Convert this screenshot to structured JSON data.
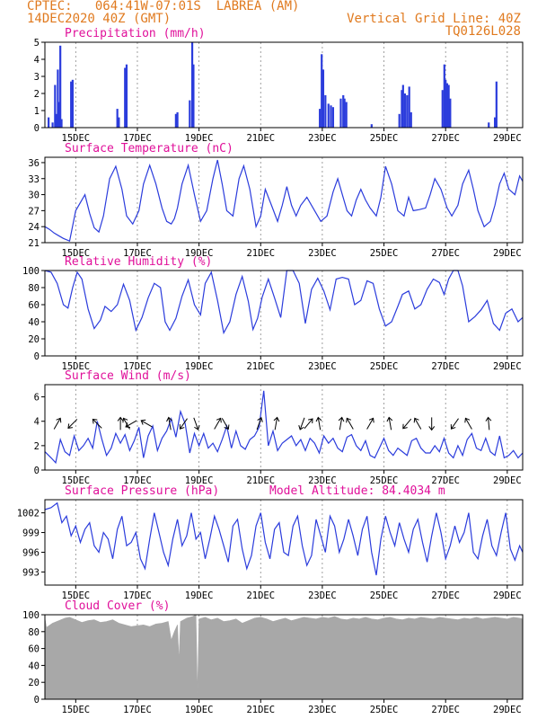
{
  "header": {
    "line1": "CPTEC:   064:41W-07:01S  LABREA (AM)",
    "line2": "14DEC2020 40Z (GMT)",
    "right1": "Vertical Grid Line: 40Z",
    "right2": "TQ0126L028"
  },
  "colors": {
    "header": "#e07a1f",
    "title": "#e0109a",
    "line": "#2b3cdc",
    "cloud": "#a8a8a8",
    "grid": "#888888"
  },
  "x_axis": {
    "start": 0,
    "end": 15.5,
    "ticks": [
      {
        "x": 1,
        "label": "15DEC"
      },
      {
        "x": 3,
        "label": "17DEC"
      },
      {
        "x": 5,
        "label": "19DEC"
      },
      {
        "x": 7,
        "label": "21DEC"
      },
      {
        "x": 9,
        "label": "23DEC"
      },
      {
        "x": 11,
        "label": "25DEC"
      },
      {
        "x": 13,
        "label": "27DEC"
      },
      {
        "x": 15,
        "label": "29DEC"
      }
    ]
  },
  "chart_data": [
    {
      "type": "bar",
      "title": "Precipitation (mm/h)",
      "ylim": [
        0,
        5
      ],
      "yticks": [
        0,
        1,
        2,
        3,
        4,
        5
      ],
      "bars": [
        [
          0.12,
          0.6
        ],
        [
          0.25,
          0.3
        ],
        [
          0.33,
          2.5
        ],
        [
          0.37,
          0.8
        ],
        [
          0.42,
          3.4
        ],
        [
          0.46,
          1.5
        ],
        [
          0.5,
          4.8
        ],
        [
          0.54,
          0.5
        ],
        [
          0.85,
          2.7
        ],
        [
          0.9,
          2.8
        ],
        [
          2.35,
          1.1
        ],
        [
          2.4,
          0.6
        ],
        [
          2.6,
          3.5
        ],
        [
          2.65,
          3.7
        ],
        [
          4.25,
          0.8
        ],
        [
          4.3,
          0.9
        ],
        [
          4.7,
          1.6
        ],
        [
          4.78,
          5.0
        ],
        [
          4.82,
          3.7
        ],
        [
          8.92,
          1.1
        ],
        [
          8.98,
          4.3
        ],
        [
          9.03,
          3.4
        ],
        [
          9.1,
          1.9
        ],
        [
          9.2,
          1.4
        ],
        [
          9.28,
          1.3
        ],
        [
          9.35,
          1.2
        ],
        [
          9.6,
          1.7
        ],
        [
          9.68,
          1.9
        ],
        [
          9.72,
          1.7
        ],
        [
          9.78,
          1.5
        ],
        [
          10.6,
          0.2
        ],
        [
          11.5,
          0.8
        ],
        [
          11.58,
          2.2
        ],
        [
          11.62,
          2.5
        ],
        [
          11.68,
          2.0
        ],
        [
          11.75,
          1.9
        ],
        [
          11.82,
          2.4
        ],
        [
          11.88,
          0.9
        ],
        [
          12.9,
          2.2
        ],
        [
          12.96,
          3.7
        ],
        [
          13.0,
          2.8
        ],
        [
          13.05,
          2.6
        ],
        [
          13.1,
          2.5
        ],
        [
          13.15,
          1.7
        ],
        [
          14.4,
          0.3
        ],
        [
          14.6,
          0.6
        ],
        [
          14.65,
          2.7
        ]
      ]
    },
    {
      "type": "line",
      "title": "Surface Temperature (nC)",
      "ylim": [
        21,
        37
      ],
      "yticks": [
        21,
        24,
        27,
        30,
        33,
        36
      ],
      "x": [
        0,
        0.15,
        0.3,
        0.45,
        0.6,
        0.8,
        1.0,
        1.3,
        1.45,
        1.6,
        1.75,
        1.9,
        2.1,
        2.3,
        2.5,
        2.65,
        2.85,
        3.05,
        3.2,
        3.4,
        3.6,
        3.8,
        3.95,
        4.1,
        4.2,
        4.3,
        4.45,
        4.65,
        4.85,
        5.05,
        5.25,
        5.45,
        5.6,
        5.75,
        5.9,
        6.1,
        6.3,
        6.45,
        6.65,
        6.85,
        7.0,
        7.15,
        7.35,
        7.55,
        7.7,
        7.85,
        8.0,
        8.15,
        8.3,
        8.5,
        8.7,
        8.95,
        9.15,
        9.35,
        9.5,
        9.65,
        9.8,
        9.95,
        10.1,
        10.25,
        10.4,
        10.55,
        10.75,
        10.9,
        11.05,
        11.25,
        11.45,
        11.65,
        11.8,
        11.95,
        12.15,
        12.35,
        12.5,
        12.65,
        12.85,
        13.05,
        13.2,
        13.4,
        13.55,
        13.75,
        13.9,
        14.05,
        14.25,
        14.45,
        14.6,
        14.75,
        14.9,
        15.05,
        15.25,
        15.4,
        15.5
      ],
      "y": [
        24,
        23.5,
        22.8,
        22.3,
        21.8,
        21.3,
        27,
        30,
        26.5,
        23.8,
        23,
        26,
        33,
        35.3,
        31,
        26,
        24.5,
        27,
        32,
        35.5,
        32,
        27.5,
        25,
        24.5,
        25.5,
        27.5,
        32,
        35.5,
        30,
        25,
        27,
        33,
        36.5,
        32,
        27,
        26,
        33,
        35.4,
        31,
        24,
        26,
        31,
        28,
        25,
        28,
        31.5,
        28,
        26,
        28,
        29.5,
        27.5,
        25,
        26,
        30.5,
        33,
        30,
        27,
        26,
        29,
        31,
        29,
        27.5,
        26,
        29.5,
        35.3,
        32,
        27,
        26,
        29.5,
        27,
        27.2,
        27.5,
        30,
        33,
        31,
        27.5,
        26,
        28,
        32,
        34.6,
        31,
        27,
        24,
        25,
        28,
        32,
        34,
        31,
        30,
        33.5,
        32.5
      ]
    },
    {
      "type": "line",
      "title": "Relative Humidity (%)",
      "ylim": [
        0,
        100
      ],
      "yticks": [
        0,
        20,
        40,
        60,
        80,
        100
      ],
      "x": [
        0,
        0.2,
        0.4,
        0.6,
        0.75,
        0.9,
        1.05,
        1.2,
        1.4,
        1.6,
        1.8,
        1.95,
        2.15,
        2.35,
        2.55,
        2.75,
        2.95,
        3.15,
        3.35,
        3.55,
        3.75,
        3.9,
        4.05,
        4.25,
        4.45,
        4.65,
        4.85,
        5.05,
        5.2,
        5.4,
        5.6,
        5.8,
        6.0,
        6.2,
        6.4,
        6.6,
        6.75,
        6.9,
        7.05,
        7.25,
        7.45,
        7.65,
        7.85,
        8.05,
        8.25,
        8.45,
        8.65,
        8.85,
        9.05,
        9.25,
        9.45,
        9.65,
        9.85,
        10.05,
        10.25,
        10.45,
        10.65,
        10.85,
        11.05,
        11.25,
        11.45,
        11.6,
        11.8,
        12.0,
        12.2,
        12.4,
        12.6,
        12.8,
        12.95,
        13.1,
        13.25,
        13.4,
        13.55,
        13.75,
        13.95,
        14.15,
        14.35,
        14.55,
        14.75,
        14.95,
        15.15,
        15.35,
        15.5
      ],
      "y": [
        100,
        98,
        85,
        60,
        56,
        80,
        98,
        90,
        55,
        32,
        42,
        58,
        52,
        60,
        84,
        65,
        30,
        45,
        68,
        85,
        80,
        40,
        30,
        44,
        70,
        89,
        60,
        48,
        85,
        98,
        65,
        27,
        40,
        72,
        93,
        64,
        31,
        44,
        69,
        90,
        68,
        45,
        100,
        100,
        85,
        38,
        78,
        91,
        76,
        54,
        90,
        92,
        90,
        60,
        65,
        88,
        85,
        55,
        35,
        40,
        58,
        72,
        76,
        55,
        60,
        78,
        90,
        86,
        72,
        90,
        100,
        100,
        82,
        40,
        46,
        54,
        65,
        38,
        30,
        50,
        55,
        40,
        45
      ]
    },
    {
      "type": "line",
      "title": "Surface Wind (m/s)",
      "ylim": [
        0,
        7
      ],
      "yticks": [
        0,
        2,
        4,
        6
      ],
      "x": [
        0,
        0.2,
        0.35,
        0.5,
        0.65,
        0.8,
        0.95,
        1.1,
        1.25,
        1.4,
        1.55,
        1.7,
        1.85,
        2.0,
        2.15,
        2.3,
        2.45,
        2.6,
        2.75,
        2.9,
        3.05,
        3.2,
        3.35,
        3.5,
        3.65,
        3.8,
        3.95,
        4.1,
        4.25,
        4.4,
        4.55,
        4.7,
        4.85,
        5.0,
        5.15,
        5.3,
        5.45,
        5.6,
        5.75,
        5.9,
        6.05,
        6.2,
        6.35,
        6.5,
        6.65,
        6.8,
        6.95,
        7.1,
        7.25,
        7.4,
        7.55,
        7.7,
        7.85,
        8.0,
        8.15,
        8.3,
        8.45,
        8.6,
        8.75,
        8.9,
        9.05,
        9.2,
        9.35,
        9.5,
        9.65,
        9.8,
        9.95,
        10.1,
        10.25,
        10.4,
        10.55,
        10.7,
        10.85,
        11.0,
        11.15,
        11.3,
        11.45,
        11.6,
        11.75,
        11.9,
        12.05,
        12.2,
        12.35,
        12.5,
        12.65,
        12.8,
        12.95,
        13.1,
        13.25,
        13.4,
        13.55,
        13.7,
        13.85,
        14.0,
        14.15,
        14.3,
        14.45,
        14.6,
        14.75,
        14.9,
        15.05,
        15.2,
        15.35,
        15.5
      ],
      "y": [
        1.5,
        1.0,
        0.6,
        2.5,
        1.5,
        1.2,
        2.8,
        1.6,
        2.0,
        2.6,
        1.8,
        4.0,
        2.5,
        1.2,
        1.8,
        3.0,
        2.2,
        2.9,
        1.6,
        2.4,
        3.5,
        1.0,
        2.8,
        3.6,
        1.6,
        2.6,
        3.2,
        4.2,
        2.7,
        4.8,
        3.8,
        1.4,
        3.0,
        2.0,
        3.0,
        1.8,
        2.2,
        1.5,
        2.5,
        3.6,
        1.8,
        3.2,
        2.0,
        1.7,
        2.5,
        2.8,
        3.5,
        6.5,
        2.0,
        3.2,
        1.6,
        2.2,
        2.5,
        2.8,
        2.0,
        2.5,
        1.6,
        2.6,
        2.2,
        1.4,
        2.8,
        2.2,
        2.6,
        1.8,
        1.5,
        2.7,
        2.9,
        2.0,
        1.6,
        2.4,
        1.2,
        1.0,
        1.8,
        2.6,
        1.6,
        1.2,
        1.8,
        1.5,
        1.2,
        2.4,
        2.6,
        1.8,
        1.4,
        1.4,
        2.0,
        1.5,
        2.6,
        1.4,
        1.0,
        2.0,
        1.2,
        2.5,
        3.0,
        1.8,
        1.6,
        2.6,
        1.5,
        1.2,
        2.8,
        1.0,
        1.2,
        1.6,
        1.0,
        1.4
      ],
      "arrow_y": 3.8,
      "arrows": [
        [
          0.4,
          30
        ],
        [
          0.9,
          225
        ],
        [
          1.7,
          315
        ],
        [
          2.45,
          0
        ],
        [
          2.65,
          330
        ],
        [
          2.8,
          240
        ],
        [
          3.3,
          300
        ],
        [
          4.05,
          350
        ],
        [
          4.5,
          215
        ],
        [
          4.9,
          160
        ],
        [
          5.6,
          30
        ],
        [
          5.85,
          150
        ],
        [
          6.95,
          20
        ],
        [
          7.5,
          10
        ],
        [
          8.35,
          200
        ],
        [
          8.55,
          40
        ],
        [
          8.9,
          350
        ],
        [
          9.6,
          10
        ],
        [
          9.9,
          330
        ],
        [
          10.55,
          30
        ],
        [
          11.2,
          350
        ],
        [
          11.75,
          220
        ],
        [
          12.1,
          330
        ],
        [
          12.55,
          180
        ],
        [
          13.3,
          215
        ],
        [
          13.75,
          330
        ],
        [
          14.4,
          355
        ]
      ]
    },
    {
      "type": "line",
      "title": "Surface Pressure (hPa)",
      "annotation": "Model Altitude: 84.4034 m",
      "ylim": [
        991,
        1004
      ],
      "yticks": [
        993,
        996,
        999,
        1002
      ],
      "x": [
        0,
        0.2,
        0.4,
        0.55,
        0.7,
        0.85,
        1.0,
        1.15,
        1.3,
        1.45,
        1.6,
        1.75,
        1.9,
        2.05,
        2.2,
        2.35,
        2.5,
        2.65,
        2.8,
        2.95,
        3.1,
        3.25,
        3.4,
        3.55,
        3.7,
        3.85,
        4.0,
        4.15,
        4.3,
        4.45,
        4.6,
        4.75,
        4.9,
        5.05,
        5.2,
        5.35,
        5.5,
        5.65,
        5.8,
        5.95,
        6.1,
        6.25,
        6.4,
        6.55,
        6.7,
        6.85,
        7.0,
        7.15,
        7.3,
        7.45,
        7.6,
        7.75,
        7.9,
        8.05,
        8.2,
        8.35,
        8.5,
        8.65,
        8.8,
        8.95,
        9.1,
        9.25,
        9.4,
        9.55,
        9.7,
        9.85,
        10.0,
        10.15,
        10.3,
        10.45,
        10.6,
        10.75,
        10.9,
        11.05,
        11.2,
        11.35,
        11.5,
        11.65,
        11.8,
        11.95,
        12.1,
        12.25,
        12.4,
        12.55,
        12.7,
        12.85,
        13.0,
        13.15,
        13.3,
        13.45,
        13.6,
        13.75,
        13.9,
        14.05,
        14.2,
        14.35,
        14.5,
        14.65,
        14.8,
        14.95,
        15.1,
        15.25,
        15.4,
        15.5
      ],
      "y": [
        1002.5,
        1002.8,
        1003.5,
        1000.5,
        1001.5,
        998.5,
        1000,
        997.5,
        999.5,
        1000.5,
        997,
        996,
        999,
        998,
        995,
        999.5,
        1001.5,
        997,
        997.5,
        999,
        995,
        993.5,
        998,
        1002,
        999,
        996,
        994,
        998,
        1001,
        997,
        998.5,
        1002,
        998,
        999,
        995,
        998,
        1001.5,
        999.5,
        997,
        994.5,
        1000,
        1001,
        996.5,
        993.5,
        995.5,
        1000,
        1002,
        997.5,
        995,
        999.5,
        1000.5,
        996,
        995.5,
        1000,
        1001.5,
        997,
        994,
        995.5,
        1001,
        998.5,
        996,
        1001.5,
        1000,
        996,
        998,
        1001,
        998.5,
        995.5,
        999.5,
        1001.5,
        996,
        992.5,
        998,
        1001.5,
        999,
        997,
        1000.5,
        998,
        996,
        999.5,
        1001,
        997.5,
        994.5,
        998.5,
        1002,
        999,
        995,
        997,
        1000,
        997.5,
        999,
        1002,
        996,
        995,
        998.5,
        1001,
        997,
        995.5,
        999,
        1002,
        996.5,
        994.8,
        997,
        996
      ]
    },
    {
      "type": "area",
      "title": "Cloud Cover (%)",
      "ylim": [
        0,
        100
      ],
      "yticks": [
        0,
        20,
        40,
        60,
        80,
        100
      ],
      "x": [
        0,
        0.05,
        0.25,
        0.45,
        0.65,
        0.8,
        1.0,
        1.2,
        1.4,
        1.6,
        1.8,
        2.0,
        2.2,
        2.4,
        2.6,
        2.8,
        3.0,
        3.2,
        3.4,
        3.6,
        3.8,
        4.0,
        4.1,
        4.2,
        4.3,
        4.35,
        4.4,
        4.6,
        4.8,
        4.9,
        4.95,
        5.0,
        5.2,
        5.4,
        5.6,
        5.8,
        6.0,
        6.2,
        6.4,
        6.6,
        6.8,
        7.0,
        7.2,
        7.4,
        7.6,
        7.8,
        8.0,
        8.2,
        8.4,
        8.6,
        8.8,
        9.0,
        9.2,
        9.4,
        9.6,
        9.8,
        10.0,
        10.2,
        10.4,
        10.6,
        10.8,
        11.0,
        11.2,
        11.4,
        11.6,
        11.8,
        12.0,
        12.2,
        12.4,
        12.6,
        12.8,
        13.0,
        13.2,
        13.4,
        13.6,
        13.8,
        14.0,
        14.2,
        14.4,
        14.6,
        14.8,
        15.0,
        15.2,
        15.4,
        15.5
      ],
      "y": [
        96,
        85,
        90,
        93,
        96,
        97,
        94,
        91,
        93,
        94,
        91,
        92,
        94,
        90,
        88,
        86,
        87,
        88,
        86,
        89,
        90,
        92,
        70,
        80,
        88,
        45,
        92,
        96,
        98,
        100,
        5,
        95,
        97,
        94,
        96,
        92,
        93,
        95,
        90,
        93,
        96,
        97,
        95,
        92,
        94,
        96,
        93,
        95,
        97,
        96,
        95,
        97,
        96,
        98,
        95,
        94,
        96,
        95,
        97,
        95,
        94,
        96,
        97,
        95,
        94,
        96,
        95,
        97,
        96,
        95,
        97,
        96,
        95,
        94,
        96,
        95,
        97,
        95,
        96,
        97,
        96,
        95,
        97,
        96,
        95
      ]
    }
  ]
}
